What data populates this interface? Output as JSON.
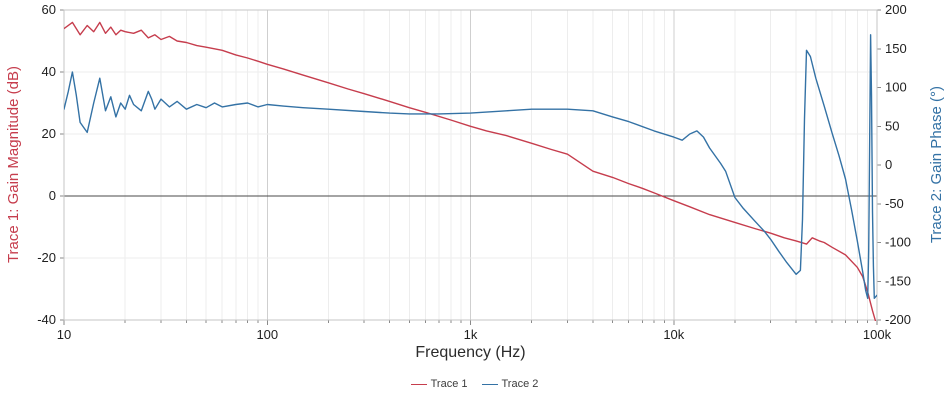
{
  "chart": {
    "x_axis": {
      "label": "Frequency (Hz)",
      "scale": "log",
      "ticks": [
        {
          "value": 10,
          "label": "10"
        },
        {
          "value": 100,
          "label": "100"
        },
        {
          "value": 1000,
          "label": "1k"
        },
        {
          "value": 10000,
          "label": "10k"
        },
        {
          "value": 100000,
          "label": "100k"
        }
      ]
    },
    "left_axis": {
      "label": "Trace 1: Gain Magnitude (dB)",
      "color": "#c63d4d",
      "min": -40,
      "max": 60,
      "ticks": [
        60,
        40,
        20,
        0,
        -20,
        -40
      ]
    },
    "right_axis": {
      "label": "Trace 2: Gain Phase (°)",
      "color": "#3472a5",
      "min": -200,
      "max": 200,
      "ticks": [
        200,
        150,
        100,
        50,
        0,
        -50,
        -100,
        -150,
        -200
      ]
    },
    "legend": [
      {
        "label": "Trace 1",
        "color": "#c63d4d"
      },
      {
        "label": "Trace 2",
        "color": "#3472a5"
      }
    ],
    "colors": {
      "grid_minor": "#ededed",
      "grid_major": "#cfcfcf",
      "frame": "#c6c6c6",
      "zero_line": "#4a4a4a",
      "tick_mark": "#8a8a8a"
    }
  },
  "chart_data": {
    "type": "line",
    "title": "",
    "xlabel": "Frequency (Hz)",
    "x_scale": "log",
    "xlim": [
      10,
      100000
    ],
    "grid": true,
    "legend_position": "bottom",
    "series": [
      {
        "name": "Trace 1",
        "axis": "left",
        "ylabel": "Trace 1: Gain Magnitude (dB)",
        "ylim": [
          -40,
          60
        ],
        "color": "#c63d4d",
        "x": [
          10,
          11,
          12,
          13,
          14,
          15,
          16,
          17,
          18,
          19,
          20,
          22,
          24,
          26,
          28,
          30,
          33,
          36,
          40,
          45,
          50,
          55,
          60,
          70,
          80,
          90,
          100,
          120,
          150,
          200,
          250,
          300,
          400,
          500,
          600,
          800,
          1000,
          1200,
          1500,
          2000,
          2500,
          3000,
          4000,
          5000,
          6000,
          7000,
          8000,
          10000,
          12000,
          15000,
          20000,
          25000,
          30000,
          35000,
          40000,
          45000,
          48000,
          52000,
          55000,
          60000,
          70000,
          80000,
          85000,
          90000,
          95000,
          97000,
          100000
        ],
        "y": [
          54,
          56,
          52,
          55,
          53,
          56,
          52.5,
          54.5,
          52,
          53.5,
          53,
          52.5,
          53.5,
          51,
          52,
          50.5,
          51.5,
          50,
          49.5,
          48.5,
          48,
          47.5,
          47,
          45.5,
          44.5,
          43.5,
          42.5,
          41,
          39,
          36.5,
          34.5,
          33,
          30.5,
          28.5,
          27,
          24.5,
          22.5,
          21,
          19.5,
          17,
          15,
          13.5,
          8,
          6,
          4,
          2.5,
          1,
          -1.5,
          -3.5,
          -6,
          -8.5,
          -10.5,
          -12,
          -13.5,
          -14.5,
          -15.5,
          -13.5,
          -14.5,
          -15,
          -16.5,
          -19,
          -23,
          -26,
          -31,
          -37,
          -39,
          -42
        ]
      },
      {
        "name": "Trace 2",
        "axis": "right",
        "ylabel": "Trace 2: Gain Phase (°)",
        "ylim": [
          -200,
          200
        ],
        "color": "#3472a5",
        "x": [
          10,
          10.5,
          11,
          11.5,
          12,
          13,
          14,
          15,
          16,
          17,
          18,
          19,
          20,
          21,
          22,
          24,
          26,
          27,
          28,
          30,
          33,
          36,
          40,
          45,
          50,
          55,
          60,
          70,
          80,
          90,
          100,
          120,
          150,
          200,
          300,
          400,
          500,
          700,
          1000,
          1500,
          2000,
          3000,
          4000,
          5000,
          6000,
          8000,
          10000,
          11000,
          12000,
          13000,
          14000,
          15000,
          17000,
          18000,
          20000,
          22000,
          25000,
          28000,
          30000,
          33000,
          36000,
          40000,
          42000,
          43000,
          44000,
          45000,
          47000,
          50000,
          55000,
          60000,
          65000,
          70000,
          75000,
          80000,
          85000,
          88000,
          90000,
          91000,
          92000,
          93000,
          94000,
          95000,
          96000,
          97000,
          100000
        ],
        "y": [
          72,
          95,
          120,
          90,
          55,
          42,
          80,
          112,
          70,
          88,
          62,
          80,
          72,
          90,
          78,
          70,
          95,
          85,
          72,
          85,
          75,
          82,
          72,
          78,
          74,
          80,
          75,
          78,
          80,
          75,
          78,
          76,
          74,
          72,
          69,
          67,
          66,
          66,
          67,
          70,
          72,
          72,
          70,
          62,
          56,
          44,
          36,
          32,
          40,
          44,
          36,
          22,
          2,
          -8,
          -42,
          -56,
          -72,
          -86,
          -96,
          -112,
          -126,
          -141,
          -136,
          -70,
          60,
          148,
          140,
          112,
          76,
          42,
          12,
          -18,
          -58,
          -98,
          -138,
          -162,
          -172,
          -110,
          20,
          168,
          90,
          -60,
          -130,
          -172,
          -168
        ]
      }
    ]
  }
}
